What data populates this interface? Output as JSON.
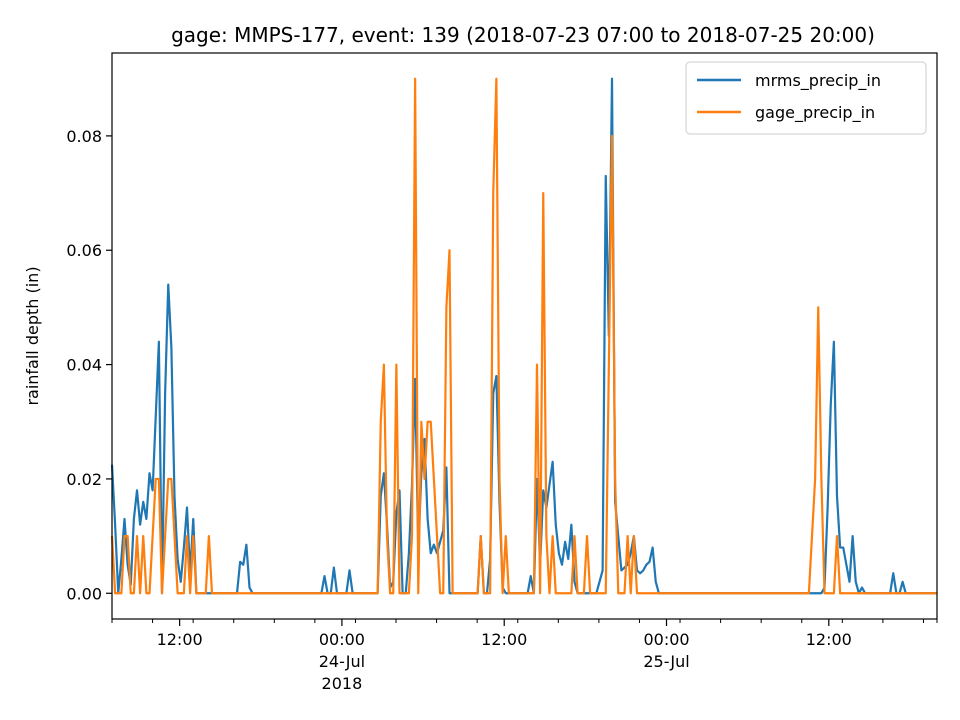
{
  "chart_data": {
    "type": "line",
    "title": "gage: MMPS-177, event: 139 (2018-07-23 07:00 to 2018-07-25 20:00)",
    "xlabel": "",
    "ylabel": "rainfall depth (in)",
    "x_start": "2018-07-23 07:00",
    "x_end": "2018-07-25 20:00",
    "x_step": "15min",
    "ylim": [
      -0.0045,
      0.0945
    ],
    "yticks": [
      0.0,
      0.02,
      0.04,
      0.06,
      0.08
    ],
    "ytick_labels": [
      "0.00",
      "0.02",
      "0.04",
      "0.06",
      "0.08"
    ],
    "xtick_labels": [
      {
        "x": "2018-07-23 12:00",
        "lines": [
          "12:00"
        ]
      },
      {
        "x": "2018-07-24 00:00",
        "lines": [
          "00:00",
          "24-Jul",
          "2018"
        ]
      },
      {
        "x": "2018-07-24 12:00",
        "lines": [
          "12:00"
        ]
      },
      {
        "x": "2018-07-25 00:00",
        "lines": [
          "00:00",
          "25-Jul"
        ]
      },
      {
        "x": "2018-07-25 12:00",
        "lines": [
          "12:00"
        ]
      }
    ],
    "grid": false,
    "legend_position": "top-right",
    "series": [
      {
        "name": "mrms_precip_in",
        "color": "#1f77b4",
        "values": [
          0.0225,
          0.012,
          0,
          0.006,
          0.013,
          0.005,
          0.0015,
          0.013,
          0.018,
          0.012,
          0.016,
          0.013,
          0.021,
          0.018,
          0.031,
          0.044,
          0,
          0.035,
          0.054,
          0.043,
          0.017,
          0.006,
          0.002,
          0.008,
          0.015,
          0.0035,
          0.013,
          0,
          0,
          0,
          0,
          0,
          0,
          0,
          0,
          0,
          0,
          0,
          0,
          0,
          0,
          0.0055,
          0.005,
          0.0085,
          0.001,
          0,
          0,
          0,
          0,
          0,
          0,
          0,
          0,
          0,
          0,
          0,
          0,
          0,
          0,
          0,
          0,
          0,
          0,
          0,
          0,
          0,
          0,
          0,
          0.003,
          0,
          0,
          0.0045,
          0,
          0,
          0,
          0,
          0.004,
          0,
          0,
          0,
          0,
          0,
          0,
          0,
          0,
          0,
          0.017,
          0.021,
          0.012,
          0.001,
          0.002,
          0.014,
          0.018,
          0,
          0,
          0.007,
          0.019,
          0.0375,
          0.0075,
          0.021,
          0.027,
          0.013,
          0.007,
          0.0085,
          0.007,
          0.009,
          0.011,
          0.022,
          0,
          0,
          0,
          0,
          0,
          0,
          0,
          0,
          0,
          0,
          0.01,
          0,
          0,
          0.006,
          0.035,
          0.038,
          0.016,
          0.001,
          0,
          0,
          0,
          0,
          0,
          0,
          0,
          0,
          0.003,
          0,
          0.02,
          0.005,
          0.018,
          0.015,
          0.019,
          0.023,
          0.012,
          0.007,
          0.005,
          0.009,
          0.006,
          0.012,
          0.002,
          0,
          0,
          0,
          0,
          0,
          0,
          0,
          0.002,
          0.004,
          0.073,
          0.045,
          0.09,
          0.016,
          0.01,
          0.004,
          0.0045,
          0.005,
          0.007,
          0.01,
          0.004,
          0.0035,
          0.004,
          0.005,
          0.0055,
          0.008,
          0.002,
          0,
          0,
          0,
          0,
          0,
          0,
          0,
          0,
          0,
          0,
          0,
          0,
          0,
          0,
          0,
          0,
          0,
          0,
          0,
          0,
          0,
          0,
          0,
          0,
          0,
          0,
          0,
          0,
          0,
          0,
          0,
          0,
          0,
          0,
          0,
          0,
          0,
          0,
          0,
          0,
          0,
          0,
          0,
          0,
          0,
          0,
          0,
          0,
          0,
          0,
          0,
          0,
          0,
          0.001,
          0.015,
          0.033,
          0.044,
          0.017,
          0.008,
          0.008,
          0.005,
          0.002,
          0.01,
          0.002,
          0,
          0.001,
          0,
          0,
          0,
          0,
          0,
          0,
          0,
          0,
          0,
          0.0035,
          0,
          0,
          0.002,
          0,
          0,
          0,
          0,
          0,
          0,
          0,
          0,
          0,
          0,
          0
        ],
        "steps_per_point": 1
      },
      {
        "name": "gage_precip_in",
        "color": "#ff7f0e",
        "values": [
          0.01,
          0,
          0,
          0,
          0.01,
          0.01,
          0,
          0,
          0.01,
          0,
          0.01,
          0,
          0,
          0.01,
          0.02,
          0.02,
          0,
          0.01,
          0.02,
          0.02,
          0.01,
          0,
          0,
          0,
          0.01,
          0,
          0.01,
          0,
          0,
          0,
          0,
          0.01,
          0,
          0,
          0,
          0,
          0,
          0,
          0,
          0,
          0,
          0,
          0,
          0,
          0,
          0,
          0,
          0,
          0,
          0,
          0,
          0,
          0,
          0,
          0,
          0,
          0,
          0,
          0,
          0,
          0,
          0,
          0,
          0,
          0,
          0,
          0,
          0,
          0,
          0,
          0,
          0,
          0,
          0,
          0,
          0,
          0,
          0,
          0,
          0,
          0,
          0,
          0,
          0,
          0,
          0,
          0.03,
          0.04,
          0.01,
          0,
          0,
          0.04,
          0,
          0,
          0,
          0,
          0.01,
          0.09,
          0,
          0.03,
          0.02,
          0.03,
          0.03,
          0.02,
          0.01,
          0,
          0,
          0.05,
          0.06,
          0,
          0,
          0,
          0,
          0,
          0,
          0,
          0,
          0,
          0.01,
          0,
          0,
          0,
          0.07,
          0.09,
          0.02,
          0,
          0.01,
          0,
          0,
          0,
          0,
          0,
          0,
          0,
          0,
          0,
          0.04,
          0,
          0.07,
          0.01,
          0,
          0.01,
          0,
          0,
          0,
          0,
          0,
          0,
          0.01,
          0,
          0,
          0,
          0.01,
          0,
          0,
          0,
          0,
          0,
          0,
          0.04,
          0.08,
          0.02,
          0,
          0,
          0,
          0.01,
          0,
          0.01,
          0,
          0,
          0,
          0,
          0,
          0,
          0,
          0,
          0,
          0,
          0,
          0,
          0,
          0,
          0,
          0,
          0,
          0,
          0,
          0,
          0,
          0,
          0,
          0,
          0,
          0,
          0,
          0,
          0,
          0,
          0,
          0,
          0,
          0,
          0,
          0,
          0,
          0,
          0,
          0,
          0,
          0,
          0,
          0,
          0,
          0,
          0,
          0,
          0,
          0,
          0,
          0,
          0,
          0,
          0,
          0,
          0.01,
          0.02,
          0.05,
          0.02,
          0,
          0,
          0,
          0,
          0.01,
          0,
          0,
          0,
          0,
          0,
          0,
          0,
          0,
          0,
          0,
          0,
          0,
          0,
          0,
          0,
          0,
          0,
          0,
          0,
          0,
          0,
          0,
          0,
          0,
          0,
          0,
          0,
          0,
          0,
          0,
          0,
          0
        ],
        "steps_per_point": 1
      }
    ]
  }
}
